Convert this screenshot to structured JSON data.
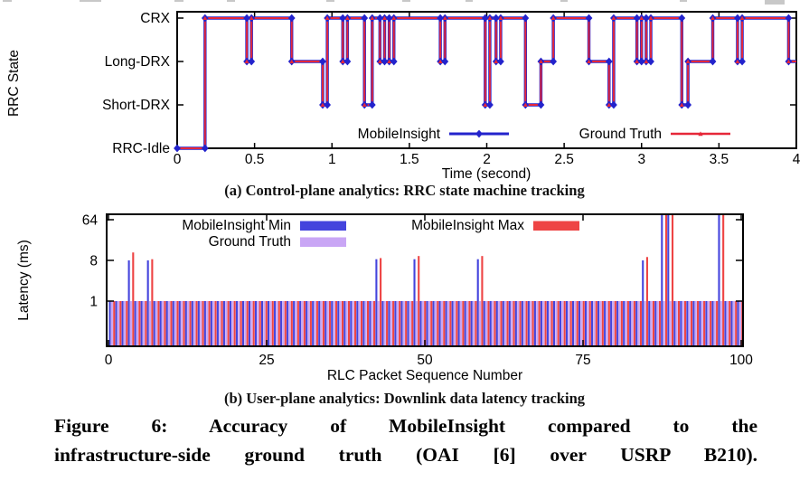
{
  "figure": {
    "caption_line1": "Figure 6: Accuracy of MobileInsight compared to the",
    "caption_line2": "infrastructure-side ground truth (OAI [6] over USRP B210)."
  },
  "chart_data": [
    {
      "type": "line",
      "subtype": "step",
      "caption": "(a) Control-plane analytics: RRC state machine tracking",
      "xlabel": "Time (second)",
      "ylabel": "RRC State",
      "xlim": [
        0,
        4
      ],
      "x_ticks": [
        0,
        0.5,
        1,
        1.5,
        2,
        2.5,
        3,
        3.5,
        4
      ],
      "x_tick_labels": [
        "0",
        "0.5",
        "1",
        "1.5",
        "2",
        "2.5",
        "3",
        "3.5",
        "4"
      ],
      "y_states": [
        "RRC-Idle",
        "Short-DRX",
        "Long-DRX",
        "CRX"
      ],
      "legend": [
        {
          "name": "MobileInsight",
          "color": "#2323cc",
          "marker": "diamond"
        },
        {
          "name": "Ground Truth",
          "color": "#e62839",
          "marker": "triangle"
        }
      ],
      "note": "MobileInsight and Ground Truth traces overlap exactly",
      "transitions": [
        [
          0.0,
          "RRC-Idle"
        ],
        [
          0.18,
          "CRX"
        ],
        [
          0.45,
          "Long-DRX"
        ],
        [
          0.48,
          "CRX"
        ],
        [
          0.74,
          "Long-DRX"
        ],
        [
          0.94,
          "Short-DRX"
        ],
        [
          0.97,
          "CRX"
        ],
        [
          1.07,
          "Long-DRX"
        ],
        [
          1.1,
          "CRX"
        ],
        [
          1.21,
          "Short-DRX"
        ],
        [
          1.26,
          "CRX"
        ],
        [
          1.31,
          "Long-DRX"
        ],
        [
          1.34,
          "CRX"
        ],
        [
          1.37,
          "Long-DRX"
        ],
        [
          1.4,
          "CRX"
        ],
        [
          1.7,
          "Long-DRX"
        ],
        [
          1.73,
          "CRX"
        ],
        [
          1.99,
          "Short-DRX"
        ],
        [
          2.02,
          "CRX"
        ],
        [
          2.06,
          "Long-DRX"
        ],
        [
          2.09,
          "CRX"
        ],
        [
          2.25,
          "Short-DRX"
        ],
        [
          2.35,
          "Long-DRX"
        ],
        [
          2.43,
          "CRX"
        ],
        [
          2.66,
          "Long-DRX"
        ],
        [
          2.79,
          "Short-DRX"
        ],
        [
          2.82,
          "CRX"
        ],
        [
          2.97,
          "Long-DRX"
        ],
        [
          3.0,
          "CRX"
        ],
        [
          3.03,
          "Long-DRX"
        ],
        [
          3.06,
          "CRX"
        ],
        [
          3.26,
          "Short-DRX"
        ],
        [
          3.3,
          "Long-DRX"
        ],
        [
          3.46,
          "CRX"
        ],
        [
          3.62,
          "Long-DRX"
        ],
        [
          3.65,
          "CRX"
        ],
        [
          3.95,
          "Long-DRX"
        ]
      ],
      "end_time": 4.0
    },
    {
      "type": "bar",
      "caption": "(b) User-plane analytics: Downlink data latency tracking",
      "xlabel": "RLC Packet Sequence Number",
      "ylabel": "Latency (ms)",
      "xlim": [
        0,
        100
      ],
      "x_ticks": [
        0,
        25,
        50,
        75,
        100
      ],
      "y_ticks": [
        1,
        8,
        64
      ],
      "y_scale": "log base 8, plot spans approx 0.125 to 84 ms, tall bars clipped at top",
      "num_packets": 100,
      "series": [
        {
          "name": "MobileInsight Min",
          "color": "#4444dd"
        },
        {
          "name": "Ground Truth",
          "color": "#c9a6f5"
        },
        {
          "name": "MobileInsight Max",
          "color": "#ee4444"
        }
      ],
      "default_latency": {
        "min": 1,
        "gt": 1,
        "max": 1
      },
      "spikes": [
        {
          "seq": 3,
          "min": 8,
          "gt": 1,
          "max": 12
        },
        {
          "seq": 6,
          "min": 8,
          "gt": 1,
          "max": 8.5
        },
        {
          "seq": 42,
          "min": 8.5,
          "gt": 1,
          "max": 9
        },
        {
          "seq": 48,
          "min": 8.5,
          "gt": 1,
          "max": 10
        },
        {
          "seq": 58,
          "min": 8.5,
          "gt": 1,
          "max": 10
        },
        {
          "seq": 84,
          "min": 8,
          "gt": 1,
          "max": 9.5
        },
        {
          "seq": 87,
          "min": 95,
          "gt": 1,
          "max": 95,
          "clipped": true
        },
        {
          "seq": 88,
          "min": 95,
          "gt": 1,
          "max": 95,
          "clipped": true
        },
        {
          "seq": 96,
          "min": 95,
          "gt": 1,
          "max": 95,
          "clipped": true
        }
      ]
    }
  ]
}
